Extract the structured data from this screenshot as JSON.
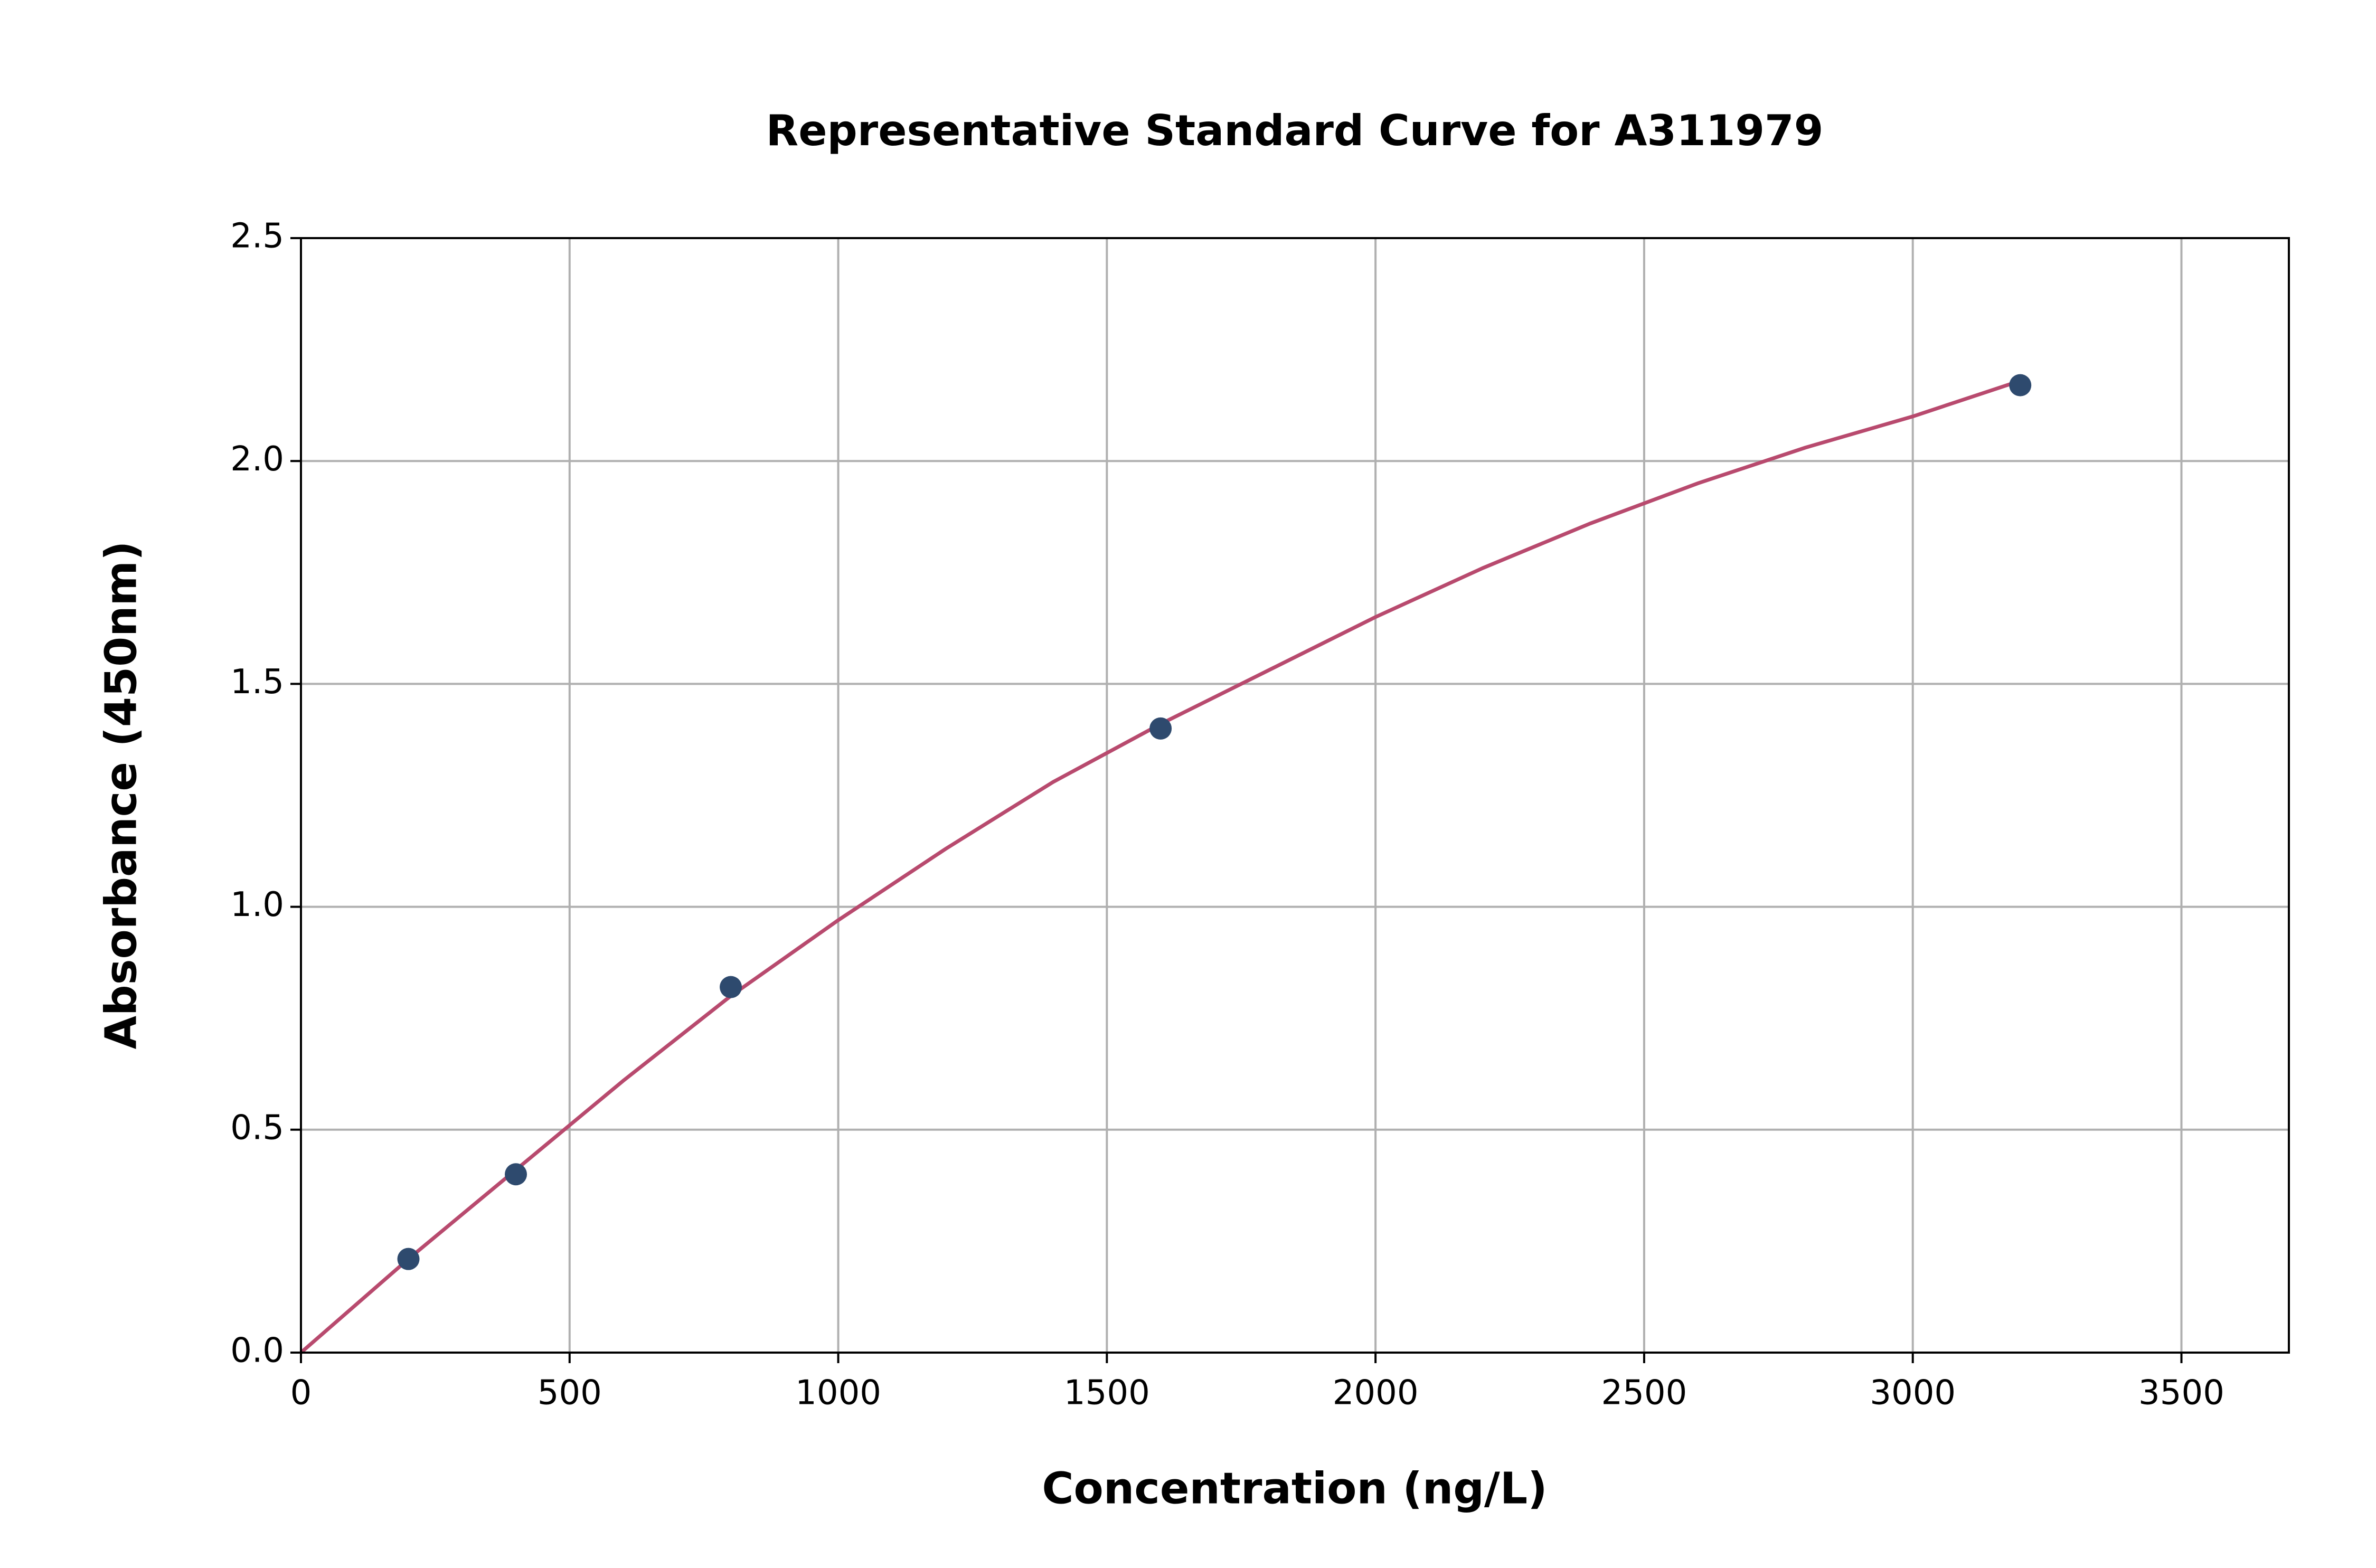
{
  "chart_data": {
    "type": "scatter",
    "title": "Representative Standard Curve for A311979",
    "x_label": "Concentration (ng/L)",
    "y_label": "Absorbance (450nm)",
    "xlim": [
      0,
      3700
    ],
    "xticks": [
      0,
      500,
      1000,
      1500,
      2000,
      2500,
      3000,
      3500
    ],
    "ylim": [
      0,
      2.5
    ],
    "yticks": [
      {
        "value": 0,
        "label": "0.0"
      },
      0.5,
      {
        "value": 1,
        "label": "1.0"
      },
      1.5,
      {
        "value": 2,
        "label": "2.0"
      },
      2.5
    ],
    "grid": true,
    "series": [
      {
        "type": "line",
        "color": "#b84a6e",
        "x": [
          0,
          200,
          400,
          600,
          800,
          1000,
          1200,
          1400,
          1600,
          1800,
          2000,
          2200,
          2400,
          2600,
          2800,
          3000,
          3200
        ],
        "values": [
          0,
          0.21,
          0.41,
          0.61,
          0.8,
          0.97,
          1.13,
          1.28,
          1.41,
          1.53,
          1.65,
          1.76,
          1.86,
          1.95,
          2.03,
          2.1,
          2.18
        ]
      },
      {
        "type": "scatter",
        "color": "#2e4a6e",
        "x": [
          200,
          400,
          800,
          1600,
          3200
        ],
        "values": [
          0.21,
          0.4,
          0.82,
          1.4,
          2.17
        ]
      }
    ]
  }
}
